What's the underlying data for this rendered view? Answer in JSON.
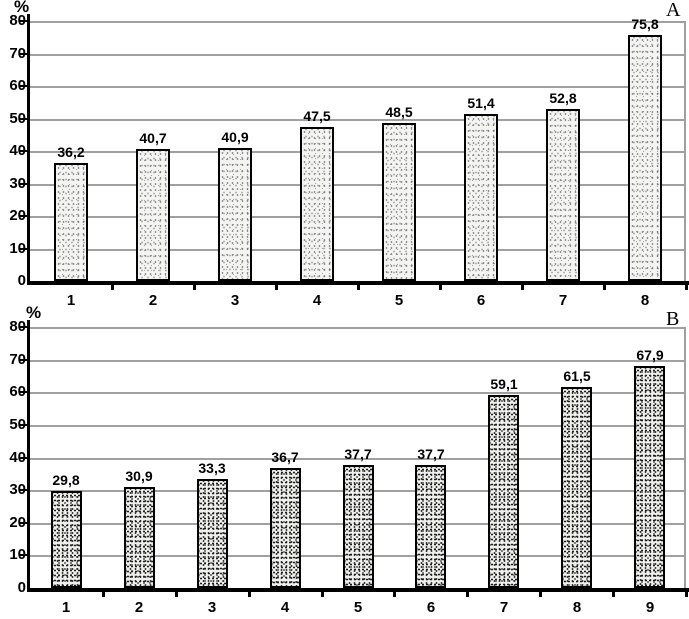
{
  "figure": {
    "background": "#ffffff",
    "panels": [
      "A",
      "B"
    ]
  },
  "chart_data": [
    {
      "type": "bar",
      "panel_label": "A",
      "ylabel": "%",
      "xlabel": "",
      "categories": [
        "1",
        "2",
        "3",
        "4",
        "5",
        "6",
        "7",
        "8"
      ],
      "values": [
        36.2,
        40.7,
        40.9,
        47.5,
        48.5,
        51.4,
        52.8,
        75.8
      ],
      "value_labels": [
        "36,2",
        "40,7",
        "40,9",
        "47,5",
        "48,5",
        "51,4",
        "52,8",
        "75,8"
      ],
      "ylim": [
        0,
        80
      ],
      "ytick_step": 10,
      "yticks": [
        "0",
        "10",
        "20",
        "30",
        "40",
        "50",
        "60",
        "70",
        "80"
      ],
      "grid": true,
      "legend": "none",
      "bar_texture": "light-stipple",
      "colors": {
        "bar_fill": "#f4f4f2",
        "bar_border": "#000000",
        "grid": "#a0a0a0",
        "axis": "#000000",
        "text": "#000000"
      }
    },
    {
      "type": "bar",
      "panel_label": "B",
      "ylabel": "%",
      "xlabel": "",
      "categories": [
        "1",
        "2",
        "3",
        "4",
        "5",
        "6",
        "7",
        "8",
        "9"
      ],
      "values": [
        29.8,
        30.9,
        33.3,
        36.7,
        37.7,
        37.7,
        59.1,
        61.5,
        67.9
      ],
      "value_labels": [
        "29,8",
        "30,9",
        "33,3",
        "36,7",
        "37,7",
        "37,7",
        "59,1",
        "61,5",
        "67,9"
      ],
      "ylim": [
        0,
        80
      ],
      "ytick_step": 10,
      "yticks": [
        "0",
        "10",
        "20",
        "30",
        "40",
        "50",
        "60",
        "70",
        "80"
      ],
      "grid": true,
      "legend": "none",
      "bar_texture": "dense-stipple",
      "colors": {
        "bar_fill": "#efefec",
        "bar_border": "#000000",
        "grid": "#a0a0a0",
        "axis": "#000000",
        "text": "#000000"
      }
    }
  ]
}
